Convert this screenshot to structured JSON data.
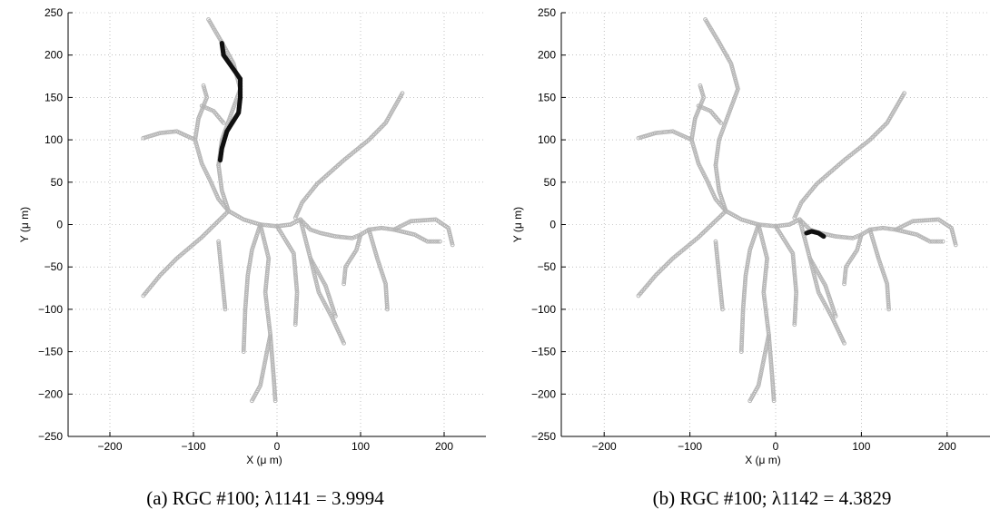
{
  "chart_data": [
    {
      "type": "scatter",
      "caption": "(a) RGC #100; λ1141 = 3.9994",
      "xlabel": "X (μ m)",
      "ylabel": "Y (μ m)",
      "xlim": [
        -250,
        250
      ],
      "ylim": [
        -250,
        250
      ],
      "xticks": [
        -200,
        -100,
        0,
        100,
        200
      ],
      "yticks": [
        250,
        200,
        150,
        100,
        50,
        0,
        -50,
        -100,
        -150,
        -200,
        -250
      ],
      "grid": true,
      "colors": {
        "dendrite": "#b4b4b4",
        "highlight": "#111111"
      },
      "highlight": [
        [
          -66,
          214
        ],
        [
          -64,
          200
        ],
        [
          -54,
          186
        ],
        [
          -44,
          172
        ],
        [
          -44,
          150
        ],
        [
          -46,
          132
        ],
        [
          -60,
          110
        ],
        [
          -66,
          90
        ],
        [
          -68,
          76
        ]
      ]
    },
    {
      "type": "scatter",
      "caption": "(b) RGC #100; λ1142 = 4.3829",
      "xlabel": "X (μ m)",
      "ylabel": "Y (μ m)",
      "xlim": [
        -250,
        250
      ],
      "ylim": [
        -250,
        250
      ],
      "xticks": [
        -200,
        -100,
        0,
        100,
        200
      ],
      "yticks": [
        250,
        200,
        150,
        100,
        50,
        0,
        -50,
        -100,
        -150,
        -200,
        -250
      ],
      "grid": true,
      "colors": {
        "dendrite": "#b4b4b4",
        "highlight": "#111111"
      },
      "highlight": [
        [
          36,
          -10
        ],
        [
          42,
          -8
        ],
        [
          50,
          -10
        ],
        [
          56,
          -14
        ]
      ]
    }
  ],
  "dendrites": [
    [
      [
        -58,
        16
      ],
      [
        -90,
        -15
      ],
      [
        -120,
        -40
      ],
      [
        -140,
        -60
      ],
      [
        -160,
        -84
      ]
    ],
    [
      [
        -58,
        16
      ],
      [
        -66,
        40
      ],
      [
        -70,
        70
      ]
    ],
    [
      [
        -70,
        70
      ],
      [
        -66,
        100
      ],
      [
        -55,
        130
      ],
      [
        -44,
        160
      ],
      [
        -52,
        190
      ],
      [
        -66,
        215
      ],
      [
        -82,
        242
      ]
    ],
    [
      [
        -58,
        16
      ],
      [
        -70,
        30
      ],
      [
        -80,
        52
      ],
      [
        -90,
        72
      ],
      [
        -98,
        100
      ],
      [
        -94,
        125
      ],
      [
        -84,
        150
      ],
      [
        -88,
        164
      ]
    ],
    [
      [
        -98,
        100
      ],
      [
        -120,
        110
      ],
      [
        -140,
        108
      ],
      [
        -160,
        102
      ]
    ],
    [
      [
        -90,
        140
      ],
      [
        -76,
        134
      ],
      [
        -64,
        120
      ]
    ],
    [
      [
        -58,
        16
      ],
      [
        -40,
        6
      ],
      [
        -20,
        0
      ],
      [
        0,
        -2
      ],
      [
        16,
        0
      ],
      [
        28,
        6
      ]
    ],
    [
      [
        22,
        8
      ],
      [
        30,
        26
      ],
      [
        48,
        48
      ],
      [
        80,
        76
      ],
      [
        110,
        100
      ],
      [
        130,
        120
      ],
      [
        150,
        155
      ]
    ],
    [
      [
        28,
        6
      ],
      [
        40,
        -6
      ],
      [
        52,
        -10
      ],
      [
        70,
        -14
      ],
      [
        90,
        -16
      ],
      [
        100,
        -12
      ],
      [
        110,
        -6
      ],
      [
        125,
        -4
      ],
      [
        140,
        -6
      ]
    ],
    [
      [
        140,
        -6
      ],
      [
        160,
        4
      ],
      [
        190,
        6
      ],
      [
        205,
        -4
      ],
      [
        210,
        -24
      ]
    ],
    [
      [
        140,
        -6
      ],
      [
        165,
        -12
      ],
      [
        180,
        -20
      ],
      [
        195,
        -20
      ]
    ],
    [
      [
        100,
        -12
      ],
      [
        95,
        -30
      ],
      [
        82,
        -50
      ],
      [
        80,
        -70
      ]
    ],
    [
      [
        110,
        -6
      ],
      [
        120,
        -40
      ],
      [
        130,
        -70
      ],
      [
        132,
        -100
      ]
    ],
    [
      [
        -20,
        0
      ],
      [
        -30,
        -30
      ],
      [
        -35,
        -60
      ],
      [
        -38,
        -100
      ],
      [
        -40,
        -150
      ]
    ],
    [
      [
        -20,
        0
      ],
      [
        -10,
        -40
      ],
      [
        -14,
        -80
      ],
      [
        -8,
        -130
      ],
      [
        -4,
        -180
      ],
      [
        -2,
        -208
      ]
    ],
    [
      [
        0,
        -2
      ],
      [
        20,
        -34
      ],
      [
        24,
        -80
      ],
      [
        22,
        -118
      ]
    ],
    [
      [
        28,
        6
      ],
      [
        40,
        -40
      ],
      [
        50,
        -80
      ],
      [
        66,
        -110
      ],
      [
        80,
        -140
      ]
    ],
    [
      [
        40,
        -40
      ],
      [
        58,
        -72
      ],
      [
        70,
        -108
      ]
    ],
    [
      [
        -8,
        -130
      ],
      [
        -20,
        -190
      ],
      [
        -30,
        -208
      ]
    ],
    [
      [
        -70,
        -20
      ],
      [
        -66,
        -60
      ],
      [
        -62,
        -100
      ]
    ]
  ]
}
